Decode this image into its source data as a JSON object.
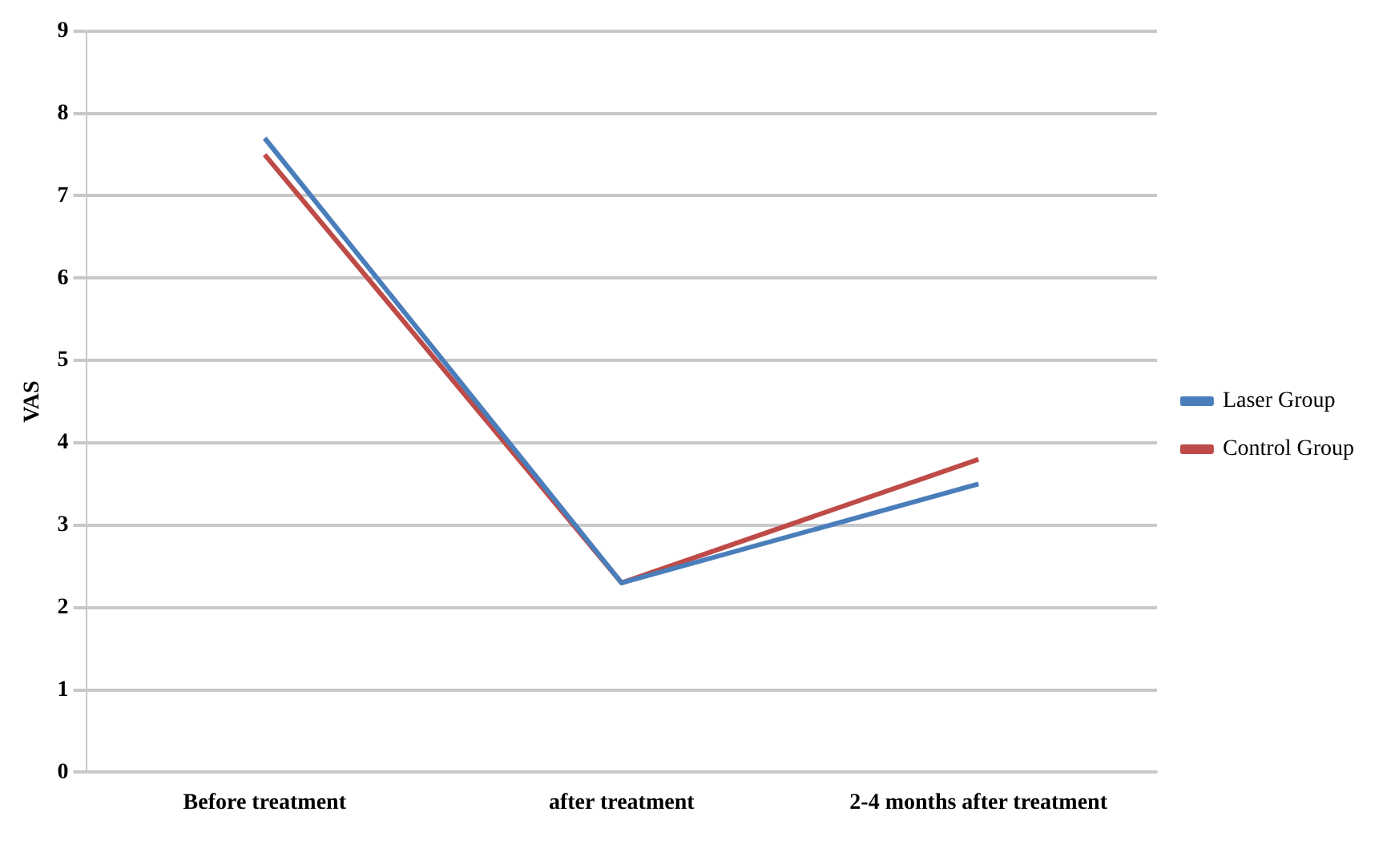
{
  "chart_data": {
    "type": "line",
    "ylabel": "VAS",
    "categories": [
      "Before treatment",
      "after treatment",
      "2-4 months after treatment"
    ],
    "series": [
      {
        "name": "Laser Group",
        "color": "#4a7ebb",
        "values": [
          7.7,
          2.3,
          3.5
        ]
      },
      {
        "name": "Control Group",
        "color": "#be4b48",
        "values": [
          7.5,
          2.3,
          3.8
        ]
      }
    ],
    "ylim": [
      0,
      9
    ],
    "yticks": [
      0,
      1,
      2,
      3,
      4,
      5,
      6,
      7,
      8,
      9
    ],
    "grid": "y",
    "legend": "right",
    "marker": "none",
    "line_style": "solid"
  }
}
